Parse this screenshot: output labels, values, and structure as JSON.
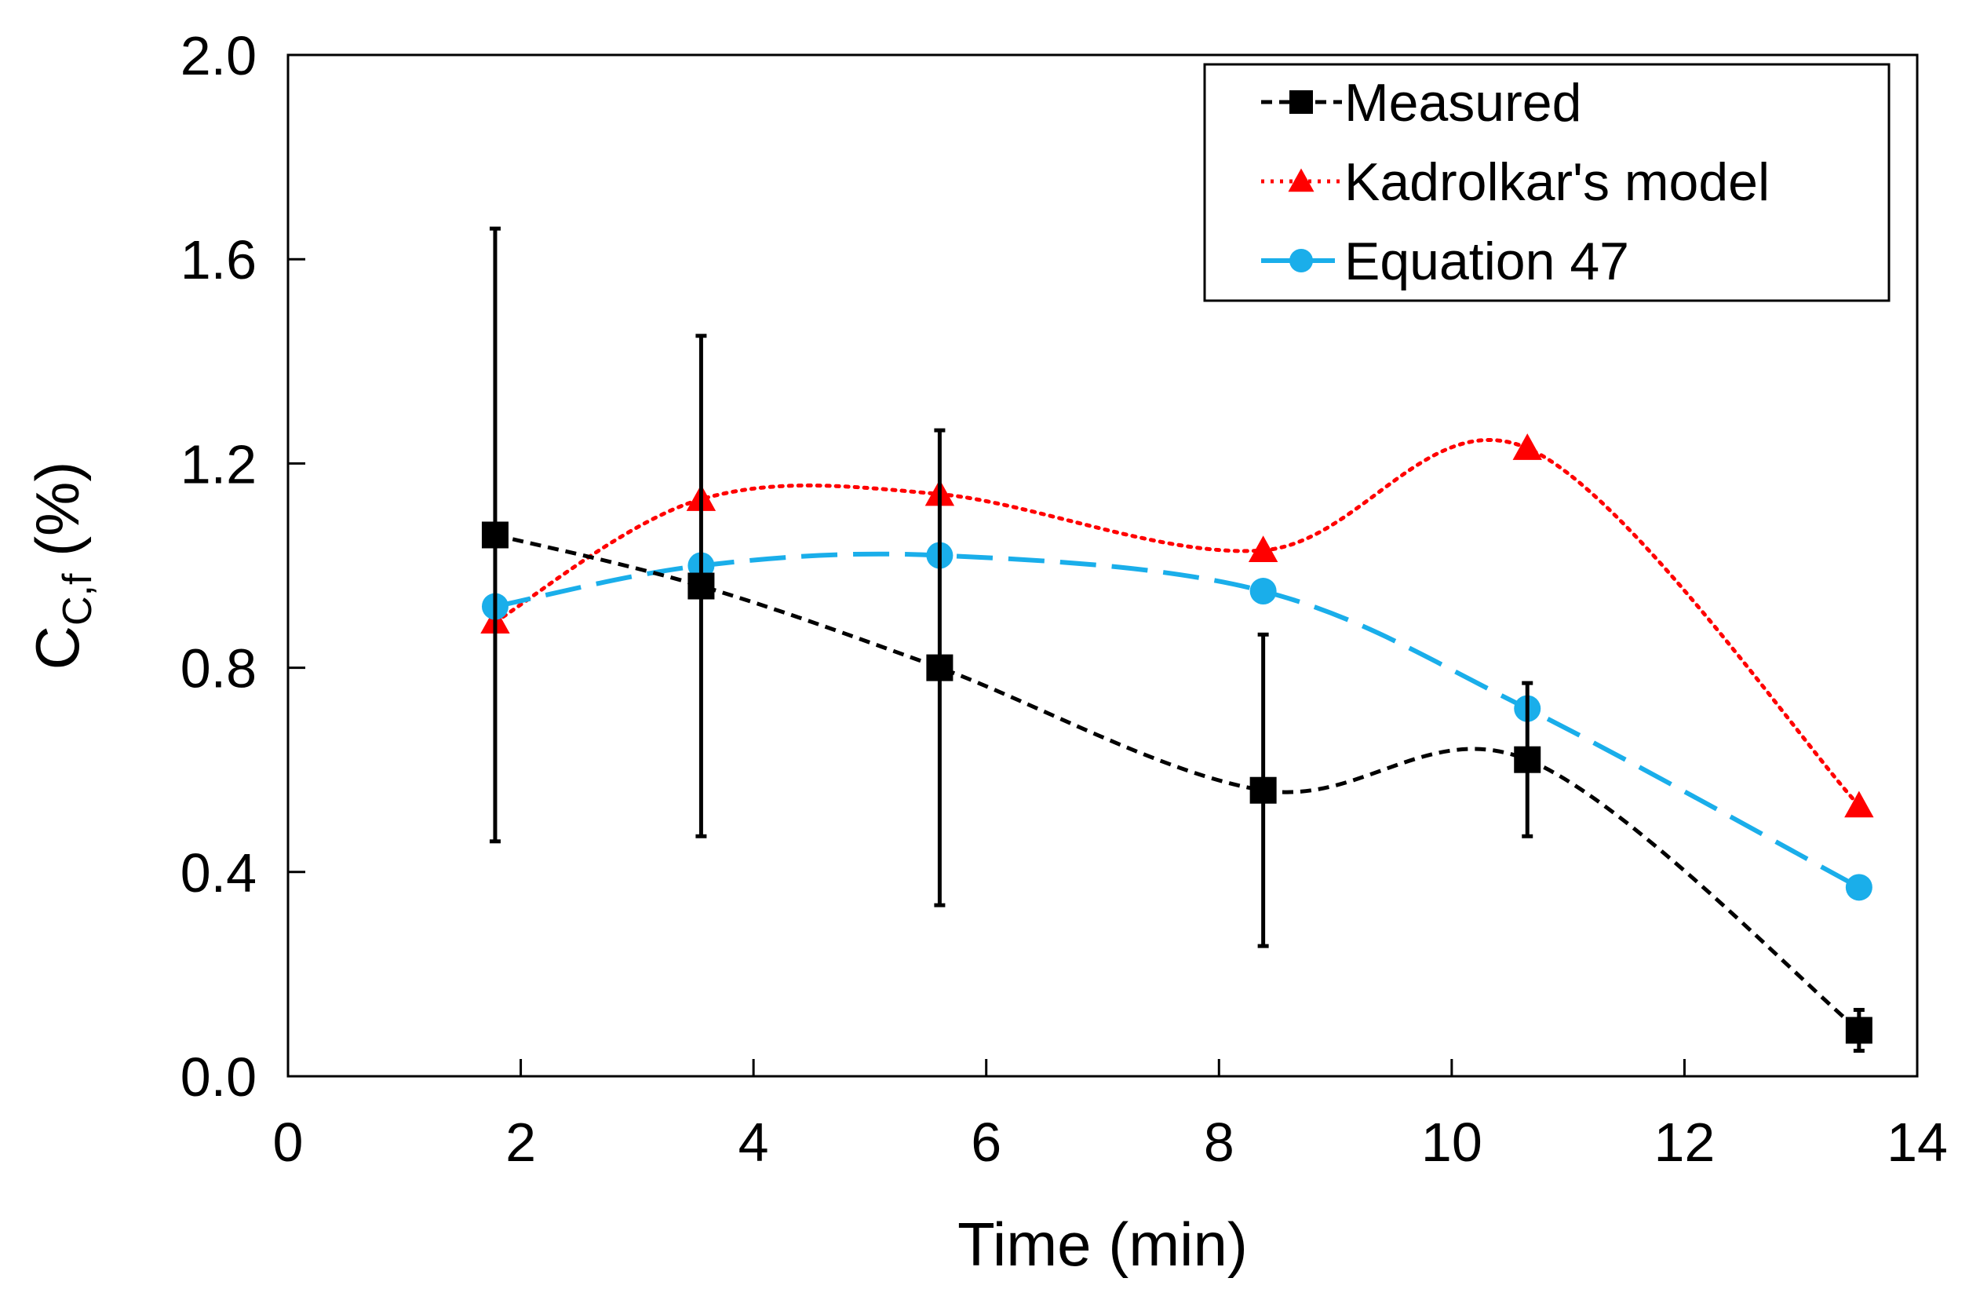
{
  "chart_data": {
    "type": "line",
    "xlabel": "Time (min)",
    "ylabel": {
      "main": "C",
      "subscript": "C,f",
      "suffix": " (%)"
    },
    "xlim": [
      0,
      14
    ],
    "ylim": [
      0,
      2.0
    ],
    "xticks": [
      0,
      2,
      4,
      6,
      8,
      10,
      12,
      14
    ],
    "yticks": [
      0.0,
      0.4,
      0.8,
      1.2,
      1.6,
      2.0
    ],
    "xtick_labels": [
      "0",
      "2",
      "4",
      "6",
      "8",
      "10",
      "12",
      "14"
    ],
    "ytick_labels": [
      "0.0",
      "0.4",
      "0.8",
      "1.2",
      "1.6",
      "2.0"
    ],
    "grid": false,
    "legend_position": "top-right",
    "series": [
      {
        "name": "Measured",
        "color": "#000000",
        "marker": "square",
        "line_style": "dashed",
        "x": [
          1.78,
          3.55,
          5.6,
          8.38,
          10.65,
          13.5
        ],
        "y": [
          1.06,
          0.96,
          0.8,
          0.56,
          0.62,
          0.09
        ],
        "error": [
          0.6,
          0.49,
          0.465,
          0.305,
          0.15,
          0.04
        ]
      },
      {
        "name": "Kadrolkar's model",
        "color": "#ff0000",
        "marker": "triangle",
        "line_style": "dotted",
        "x": [
          1.78,
          3.55,
          5.6,
          8.38,
          10.65,
          13.5
        ],
        "y": [
          0.89,
          1.13,
          1.14,
          1.03,
          1.23,
          0.53
        ]
      },
      {
        "name": "Equation 47",
        "color": "#1aaeea",
        "marker": "circle",
        "line_style": "long-dash",
        "x": [
          1.78,
          3.55,
          5.6,
          8.38,
          10.65,
          13.5
        ],
        "y": [
          0.92,
          1.0,
          1.02,
          0.95,
          0.72,
          0.37
        ]
      }
    ]
  }
}
